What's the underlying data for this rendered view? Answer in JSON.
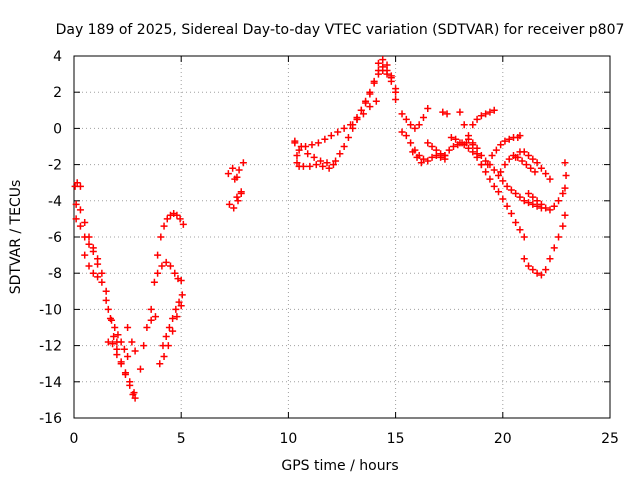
{
  "chart_data": {
    "type": "scatter",
    "title": "Day 189 of 2025, Sidereal Day-to-day VTEC variation (SDTVAR) for receiver p807",
    "xlabel": "GPS time / hours",
    "ylabel": "SDTVAR / TECUs",
    "xlim": [
      0,
      25
    ],
    "ylim": [
      -16,
      4
    ],
    "xticks": [
      0,
      5,
      10,
      15,
      20,
      25
    ],
    "yticks": [
      -16,
      -14,
      -12,
      -10,
      -8,
      -6,
      -4,
      -2,
      0,
      2,
      4
    ],
    "grid": true,
    "marker": "+",
    "color": "#ff0000",
    "tracks": [
      {
        "x": [
          0.05,
          0.15,
          0.3
        ],
        "y": [
          -3.2,
          -3.0,
          -3.2
        ]
      },
      {
        "x": [
          0.1,
          0.3,
          0.5,
          0.7,
          0.9,
          1.1,
          1.3,
          1.5,
          1.7,
          1.85,
          2.0,
          2.2,
          2.4,
          2.6,
          2.75,
          2.85
        ],
        "y": [
          -4.2,
          -4.5,
          -5.2,
          -6.0,
          -6.6,
          -7.5,
          -8.5,
          -9.5,
          -10.5,
          -11.5,
          -12.2,
          -12.9,
          -13.5,
          -14.2,
          -14.7,
          -14.9
        ]
      },
      {
        "x": [
          0.1,
          0.3,
          0.5,
          0.7,
          0.9,
          1.1,
          1.3,
          1.5
        ],
        "y": [
          -5.0,
          -5.4,
          -6.0,
          -6.4,
          -6.8,
          -7.2,
          -8.0,
          -9.0
        ]
      },
      {
        "x": [
          0.5,
          0.7,
          0.9,
          1.1
        ],
        "y": [
          -7.0,
          -7.6,
          -8.0,
          -8.2
        ]
      },
      {
        "x": [
          1.6,
          1.75,
          1.9,
          2.05,
          2.2,
          2.35,
          2.5
        ],
        "y": [
          -10.0,
          -10.6,
          -11.0,
          -11.4,
          -11.8,
          -12.2,
          -12.6
        ]
      },
      {
        "x": [
          1.6,
          1.8,
          2.0
        ],
        "y": [
          -11.8,
          -11.9,
          -11.8
        ]
      },
      {
        "x": [
          2.0,
          2.2,
          2.4,
          2.6,
          2.8
        ],
        "y": [
          -12.5,
          -13.0,
          -13.6,
          -14.0,
          -14.6
        ]
      },
      {
        "x": [
          2.5,
          2.7,
          2.85
        ],
        "y": [
          -11.0,
          -11.8,
          -12.3
        ]
      },
      {
        "x": [
          3.1,
          3.25,
          3.4,
          3.6,
          3.8
        ],
        "y": [
          -13.3,
          -12.0,
          -11.0,
          -10.6,
          -10.4
        ]
      },
      {
        "x": [
          3.6,
          3.75,
          3.9,
          4.05,
          4.2,
          4.35,
          4.5,
          4.65,
          4.8,
          4.95,
          5.1
        ],
        "y": [
          -10.0,
          -8.5,
          -7.0,
          -6.0,
          -5.4,
          -5.0,
          -4.8,
          -4.7,
          -4.8,
          -5.0,
          -5.3
        ]
      },
      {
        "x": [
          3.9,
          4.1,
          4.3,
          4.5,
          4.7,
          4.85,
          5.0
        ],
        "y": [
          -8.0,
          -7.6,
          -7.4,
          -7.6,
          -8.0,
          -8.3,
          -8.4
        ]
      },
      {
        "x": [
          4.0,
          4.15,
          4.3,
          4.45,
          4.6,
          4.75,
          4.9,
          5.05
        ],
        "y": [
          -13.0,
          -12.0,
          -11.5,
          -11.0,
          -10.5,
          -10.0,
          -9.6,
          -9.2
        ]
      },
      {
        "x": [
          4.2,
          4.4,
          4.6,
          4.8,
          5.0
        ],
        "y": [
          -12.6,
          -12.0,
          -11.2,
          -10.4,
          -9.8
        ]
      },
      {
        "x": [
          7.2,
          7.4,
          7.6
        ],
        "y": [
          -2.5,
          -2.2,
          -2.7
        ]
      },
      {
        "x": [
          7.25,
          7.45,
          7.65,
          7.8
        ],
        "y": [
          -4.2,
          -4.4,
          -4.0,
          -3.6
        ]
      },
      {
        "x": [
          7.5,
          7.7,
          7.9
        ],
        "y": [
          -2.8,
          -2.3,
          -1.9
        ]
      },
      {
        "x": [
          7.6,
          7.8
        ],
        "y": [
          -3.8,
          -3.5
        ]
      },
      {
        "x": [
          10.3,
          10.4,
          10.5
        ],
        "y": [
          -0.8,
          -1.5,
          -2.1
        ]
      },
      {
        "x": [
          10.3,
          10.6,
          10.9,
          11.2,
          11.5,
          11.8,
          12.1
        ],
        "y": [
          -0.7,
          -1.0,
          -1.4,
          -1.6,
          -1.8,
          -1.9,
          -2.0
        ]
      },
      {
        "x": [
          10.4,
          10.7,
          11.0,
          11.3,
          11.6,
          11.9
        ],
        "y": [
          -1.9,
          -2.1,
          -2.1,
          -2.0,
          -2.1,
          -2.2
        ]
      },
      {
        "x": [
          10.5,
          10.8,
          11.1,
          11.4,
          11.7,
          12.0,
          12.3,
          12.6,
          12.9,
          13.2,
          13.5,
          13.8,
          14.1
        ],
        "y": [
          -1.2,
          -1.0,
          -0.9,
          -0.8,
          -0.6,
          -0.4,
          -0.2,
          0.0,
          0.2,
          0.5,
          0.8,
          1.2,
          1.5
        ]
      },
      {
        "x": [
          12.2,
          12.4,
          12.6,
          12.8,
          13.0,
          13.2,
          13.4,
          13.6,
          13.8,
          14.0,
          14.2,
          14.4,
          14.6,
          14.8,
          15.0
        ],
        "y": [
          -1.8,
          -1.4,
          -1.0,
          -0.5,
          0.0,
          0.5,
          1.0,
          1.5,
          2.0,
          2.6,
          3.0,
          3.2,
          3.0,
          2.6,
          2.0
        ]
      },
      {
        "x": [
          13.0,
          13.2,
          13.4,
          13.6,
          13.8,
          14.0,
          14.2,
          14.4,
          14.6,
          14.8,
          15.0
        ],
        "y": [
          0.2,
          0.6,
          1.0,
          1.4,
          1.9,
          2.5,
          3.2,
          3.8,
          3.5,
          2.9,
          2.2
        ]
      },
      {
        "x": [
          14.2,
          14.4,
          14.6,
          14.8,
          15.0
        ],
        "y": [
          3.6,
          3.4,
          3.2,
          2.8,
          1.6
        ]
      },
      {
        "x": [
          15.3,
          15.5,
          15.7,
          15.9,
          16.1,
          16.3,
          16.5
        ],
        "y": [
          0.8,
          0.5,
          0.2,
          0.0,
          0.2,
          0.6,
          1.1
        ]
      },
      {
        "x": [
          15.3,
          15.5,
          15.7,
          15.9,
          16.1,
          16.3,
          16.5,
          16.7,
          16.9,
          17.1,
          17.3
        ],
        "y": [
          -0.2,
          -0.4,
          -0.8,
          -1.2,
          -1.5,
          -1.7,
          -1.8,
          -1.6,
          -1.5,
          -1.6,
          -1.7
        ]
      },
      {
        "x": [
          15.8,
          16.0,
          16.2
        ],
        "y": [
          -1.3,
          -1.6,
          -1.9
        ]
      },
      {
        "x": [
          16.5,
          16.7,
          16.9,
          17.1,
          17.3
        ],
        "y": [
          -0.8,
          -1.0,
          -1.2,
          -1.4,
          -1.5
        ]
      },
      {
        "x": [
          17.2,
          17.4
        ],
        "y": [
          0.9,
          0.8
        ]
      },
      {
        "x": [
          17.3,
          17.5,
          17.7,
          17.9,
          18.1,
          18.3
        ],
        "y": [
          -1.5,
          -1.2,
          -1.0,
          -0.9,
          -0.8,
          -0.8
        ]
      },
      {
        "x": [
          17.6,
          17.8,
          18.0,
          18.2,
          18.4,
          18.6,
          18.8,
          19.0,
          19.2,
          19.4,
          19.6,
          19.8,
          20.0,
          20.2,
          20.4,
          20.6,
          20.8,
          21.0
        ],
        "y": [
          -0.5,
          -0.6,
          -0.8,
          -0.9,
          -1.1,
          -1.3,
          -1.6,
          -2.0,
          -2.4,
          -2.8,
          -3.2,
          -3.5,
          -3.9,
          -4.3,
          -4.7,
          -5.2,
          -5.6,
          -6.0
        ]
      },
      {
        "x": [
          18.0,
          18.2,
          18.4,
          18.6,
          18.8,
          19.0
        ],
        "y": [
          0.9,
          0.2,
          -0.4,
          -0.9,
          -1.4,
          -2.0
        ]
      },
      {
        "x": [
          18.4,
          18.6,
          18.8,
          19.0,
          19.2,
          19.4,
          19.6,
          19.8,
          20.0,
          20.2,
          20.4,
          20.6,
          20.8,
          21.0,
          21.2,
          21.4,
          21.6,
          21.8
        ],
        "y": [
          -0.6,
          -0.8,
          -1.1,
          -1.5,
          -1.8,
          -2.0,
          -2.3,
          -2.6,
          -2.9,
          -3.2,
          -3.4,
          -3.6,
          -3.8,
          -4.0,
          -4.1,
          -4.2,
          -4.3,
          -4.4
        ]
      },
      {
        "x": [
          18.6,
          18.8,
          19.0,
          19.2,
          19.4,
          19.6
        ],
        "y": [
          0.2,
          0.5,
          0.7,
          0.8,
          0.9,
          1.0
        ]
      },
      {
        "x": [
          19.3,
          19.5,
          19.7,
          19.9,
          20.1,
          20.3,
          20.5,
          20.7,
          20.8
        ],
        "y": [
          -2.0,
          -1.5,
          -1.2,
          -0.9,
          -0.7,
          -0.6,
          -0.5,
          -0.5,
          -0.4
        ]
      },
      {
        "x": [
          19.9,
          20.1,
          20.3,
          20.5,
          20.7,
          20.9,
          21.1,
          21.3,
          21.5
        ],
        "y": [
          -2.4,
          -2.0,
          -1.7,
          -1.5,
          -1.6,
          -1.8,
          -2.0,
          -2.2,
          -2.4
        ]
      },
      {
        "x": [
          20.6,
          20.8,
          21.0,
          21.2,
          21.4,
          21.6,
          21.8,
          22.0,
          22.2
        ],
        "y": [
          -1.6,
          -1.3,
          -1.3,
          -1.5,
          -1.7,
          -1.9,
          -2.2,
          -2.5,
          -2.8
        ]
      },
      {
        "x": [
          21.2,
          21.4,
          21.6,
          21.8,
          22.0,
          22.2,
          22.4,
          22.6,
          22.8,
          22.9
        ],
        "y": [
          -3.6,
          -3.8,
          -4.0,
          -4.2,
          -4.4,
          -4.5,
          -4.3,
          -4.0,
          -3.6,
          -3.3
        ]
      },
      {
        "x": [
          21.0,
          21.2,
          21.4,
          21.6,
          21.8,
          22.0,
          22.2,
          22.4,
          22.6,
          22.8
        ],
        "y": [
          -7.2,
          -7.6,
          -7.8,
          -8.0,
          -8.1,
          -7.8,
          -7.2,
          -6.6,
          -6.0,
          -5.4
        ]
      },
      {
        "x": [
          22.9,
          22.95,
          22.9
        ],
        "y": [
          -1.9,
          -2.6,
          -4.8
        ]
      }
    ]
  }
}
